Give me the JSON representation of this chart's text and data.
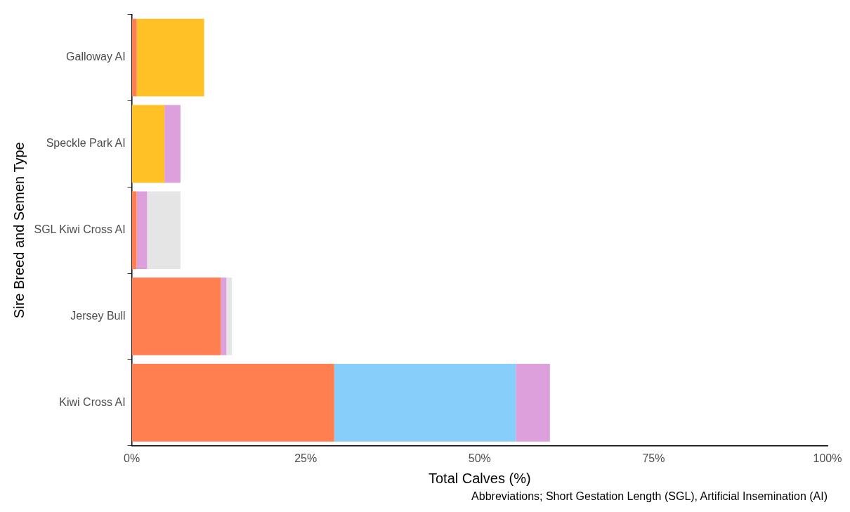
{
  "chart_data": {
    "type": "bar",
    "orientation": "horizontal",
    "stacked": true,
    "xlabel": "Total Calves (%)",
    "ylabel": "Sire Breed and Semen Type",
    "categories": [
      "Galloway AI",
      "Speckle Park AI",
      "SGL Kiwi Cross AI",
      "Jersey Bull",
      "Kiwi Cross AI"
    ],
    "series": [
      {
        "color": "#ff7f50",
        "values": [
          0.7,
          null,
          0.7,
          12.8,
          29.1
        ]
      },
      {
        "color": "#87cefa",
        "values": [
          null,
          null,
          null,
          null,
          26.1
        ]
      },
      {
        "color": "#ffc125",
        "values": [
          9.7,
          4.7,
          null,
          null,
          null
        ]
      },
      {
        "color": "#dda0dd",
        "values": [
          null,
          2.3,
          1.5,
          0.8,
          4.9
        ]
      },
      {
        "color": "#e5e5e5",
        "values": [
          null,
          null,
          4.8,
          0.8,
          null
        ]
      }
    ],
    "xlim": [
      0,
      100
    ],
    "xticks": [
      {
        "value": 0,
        "label": "0%"
      },
      {
        "value": 25,
        "label": "25%"
      },
      {
        "value": 50,
        "label": "50%"
      },
      {
        "value": 75,
        "label": "75%"
      },
      {
        "value": 100,
        "label": "100%"
      }
    ],
    "grid": false,
    "legend": false,
    "annotations": [
      "Abbreviations; Short Gestation Length (SGL), Artificial Insemination (AI)"
    ]
  }
}
